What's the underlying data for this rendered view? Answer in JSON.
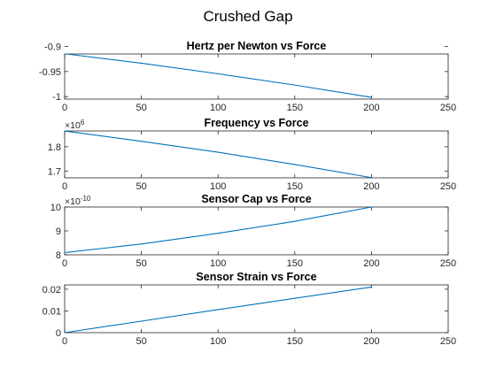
{
  "figure": {
    "title": "Crushed Gap",
    "line_color": "#0072BD",
    "axis_color": "#262626"
  },
  "chart_data": [
    {
      "type": "line",
      "title": "Hertz per Newton vs Force",
      "xlabel": "",
      "ylabel": "",
      "xlim": [
        0,
        250
      ],
      "ylim": [
        -1.005,
        -0.915
      ],
      "xticks": [
        0,
        50,
        100,
        150,
        200,
        250
      ],
      "xtick_labels": [
        "0",
        "50",
        "100",
        "150",
        "200",
        "250"
      ],
      "yticks": [
        -1,
        -0.95,
        -0.9
      ],
      "ytick_labels": [
        "-1",
        "-0.95",
        "-0.9"
      ],
      "exponent_label": "",
      "grid": false,
      "series": [
        {
          "x": [
            1,
            50,
            100,
            150,
            200
          ],
          "y": [
            -0.915,
            -0.9335,
            -0.9545,
            -0.977,
            -1.0015
          ]
        }
      ]
    },
    {
      "type": "line",
      "title": "Frequency vs Force",
      "xlabel": "",
      "ylabel": "",
      "xlim": [
        0,
        250
      ],
      "ylim": [
        1.672,
        1.865
      ],
      "xticks": [
        0,
        50,
        100,
        150,
        200,
        250
      ],
      "xtick_labels": [
        "0",
        "50",
        "100",
        "150",
        "200",
        "250"
      ],
      "yticks": [
        1.7,
        1.8
      ],
      "ytick_labels": [
        "1.7",
        "1.8"
      ],
      "exponent_label": "×10",
      "exponent": "6",
      "grid": false,
      "series": [
        {
          "x": [
            1,
            50,
            100,
            150,
            200
          ],
          "y": [
            1.864,
            1.8225,
            1.7775,
            1.727,
            1.673
          ]
        }
      ]
    },
    {
      "type": "line",
      "title": "Sensor Cap vs Force",
      "xlabel": "",
      "ylabel": "",
      "xlim": [
        0,
        250
      ],
      "ylim": [
        8,
        10
      ],
      "xticks": [
        0,
        50,
        100,
        150,
        200,
        250
      ],
      "xtick_labels": [
        "0",
        "50",
        "100",
        "150",
        "200",
        "250"
      ],
      "yticks": [
        8,
        9,
        10
      ],
      "ytick_labels": [
        "8",
        "9",
        "10"
      ],
      "exponent_label": "×10",
      "exponent": "-10",
      "grid": false,
      "series": [
        {
          "x": [
            1,
            50,
            100,
            150,
            200
          ],
          "y": [
            8.1,
            8.45,
            8.9,
            9.4,
            10.0
          ]
        }
      ]
    },
    {
      "type": "line",
      "title": "Sensor Strain vs Force",
      "xlabel": "",
      "ylabel": "",
      "xlim": [
        0,
        250
      ],
      "ylim": [
        0,
        0.022
      ],
      "xticks": [
        0,
        50,
        100,
        150,
        200,
        250
      ],
      "xtick_labels": [
        "0",
        "50",
        "100",
        "150",
        "200",
        "250"
      ],
      "yticks": [
        0,
        0.01,
        0.02
      ],
      "ytick_labels": [
        "0",
        "0.01",
        "0.02"
      ],
      "exponent_label": "",
      "grid": false,
      "series": [
        {
          "x": [
            1,
            50,
            100,
            150,
            200
          ],
          "y": [
            0.0001,
            0.0053,
            0.0106,
            0.0158,
            0.021
          ]
        }
      ]
    }
  ]
}
